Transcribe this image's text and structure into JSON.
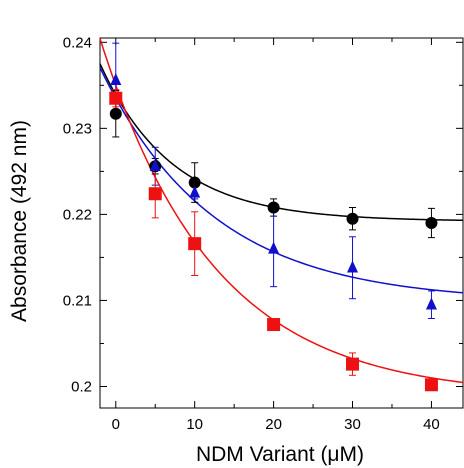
{
  "chart_data": {
    "type": "scatter",
    "title": "",
    "xlabel": "NDM Variant (μM)",
    "ylabel": "Absorbance (492 nm)",
    "xlim": [
      -2,
      44
    ],
    "ylim": [
      0.1975,
      0.2405
    ],
    "x_ticks": [
      0,
      10,
      20,
      30,
      40
    ],
    "x_tick_labels": [
      "0",
      "10",
      "20",
      "30",
      "40"
    ],
    "y_ticks": [
      0.2,
      0.21,
      0.22,
      0.23,
      0.24
    ],
    "y_tick_labels": [
      "0.2",
      "0.21",
      "0.22",
      "0.23",
      "0.24"
    ],
    "grid": false,
    "legend": "none",
    "series": [
      {
        "marker": "circle",
        "color": "#000000",
        "points": [
          {
            "x": 0,
            "y": 0.2317,
            "err": 0.0027
          },
          {
            "x": 5,
            "y": 0.2256,
            "err": 0.0009
          },
          {
            "x": 10,
            "y": 0.2237,
            "err": 0.0023
          },
          {
            "x": 20,
            "y": 0.2208,
            "err": 0.001
          },
          {
            "x": 30,
            "y": 0.2195,
            "err": 0.0013
          },
          {
            "x": 40,
            "y": 0.219,
            "err": 0.0017
          }
        ],
        "fit": {
          "plateau": 0.2192,
          "amplitude": 0.0147,
          "rate": 0.11
        }
      },
      {
        "marker": "triangle",
        "color": "#1010cc",
        "points": [
          {
            "x": 0,
            "y": 0.2356,
            "err": 0.0043
          },
          {
            "x": 5,
            "y": 0.2256,
            "err": 0.0022
          },
          {
            "x": 10,
            "y": 0.2225,
            "err": 0.0007
          },
          {
            "x": 20,
            "y": 0.216,
            "err": 0.0044
          },
          {
            "x": 30,
            "y": 0.2138,
            "err": 0.0036
          },
          {
            "x": 40,
            "y": 0.2095,
            "err": 0.0016
          }
        ],
        "fit": {
          "plateau": 0.2098,
          "amplitude": 0.0237,
          "rate": 0.07
        }
      },
      {
        "marker": "square",
        "color": "#ee1111",
        "points": [
          {
            "x": 0,
            "y": 0.2335,
            "err": 0.001
          },
          {
            "x": 5,
            "y": 0.2224,
            "err": 0.0028
          },
          {
            "x": 10,
            "y": 0.2166,
            "err": 0.0037
          },
          {
            "x": 20,
            "y": 0.2072,
            "err": 0.0004
          },
          {
            "x": 30,
            "y": 0.2026,
            "err": 0.0013
          },
          {
            "x": 40,
            "y": 0.2002,
            "err": 0.0004
          }
        ],
        "fit": {
          "plateau": 0.1988,
          "amplitude": 0.0362,
          "rate": 0.07
        }
      }
    ]
  }
}
